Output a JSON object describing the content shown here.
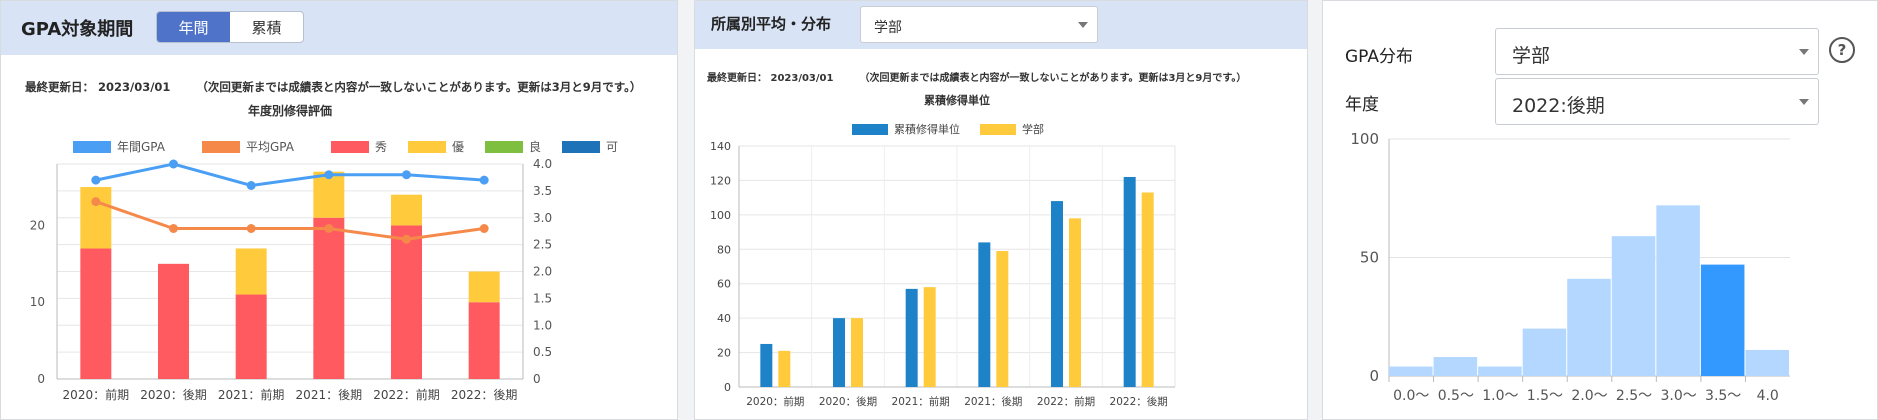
{
  "panel_gpa": {
    "title": "GPA対象期間",
    "toggle": [
      "年間",
      "累積"
    ],
    "updated_label": "最終更新日： 2023/03/01",
    "note": "（次回更新までは成績表と内容が一致しないことがあります。更新は3月と9月です。）"
  },
  "panel_dist": {
    "title": "所属別平均・分布",
    "select_value": "学部",
    "updated_label": "最終更新日： 2023/03/01",
    "note": "（次回更新までは成績表と内容が一致しないことがあります。更新は3月と9月です。）"
  },
  "panel_hist": {
    "gpa_label": "GPA分布",
    "gpa_select": "学部",
    "year_label": "年度",
    "year_select": "2022:後期",
    "help": "?"
  },
  "chart_data": [
    {
      "type": "bar",
      "title": "年度別修得評価",
      "categories": [
        "2020：前期",
        "2020：後期",
        "2021：前期",
        "2021：後期",
        "2022：前期",
        "2022：後期"
      ],
      "stacked": true,
      "series": [
        {
          "name": "秀",
          "color": "#ff5a5f",
          "values": [
            17,
            15,
            11,
            21,
            20,
            10
          ]
        },
        {
          "name": "優",
          "color": "#ffcb3d",
          "values": [
            8,
            0,
            6,
            6,
            4,
            4
          ]
        },
        {
          "name": "良",
          "color": "#7fbf3f",
          "values": [
            0,
            0,
            0,
            0,
            0,
            0
          ]
        },
        {
          "name": "可",
          "color": "#1e72b8",
          "values": [
            0,
            0,
            0,
            0,
            0,
            0
          ]
        }
      ],
      "line_series": [
        {
          "name": "年間GPA",
          "color": "#4a9ff5",
          "values": [
            3.7,
            4.0,
            3.6,
            3.8,
            3.8,
            3.7
          ]
        },
        {
          "name": "平均GPA",
          "color": "#f5894a",
          "values": [
            3.3,
            2.8,
            2.8,
            2.8,
            2.6,
            2.8
          ]
        }
      ],
      "legend": [
        "年間GPA",
        "平均GPA",
        "秀",
        "優",
        "良",
        "可"
      ],
      "legend_position": "top",
      "ylim": [
        0,
        28
      ],
      "yticks": [
        "0",
        "10",
        "20"
      ],
      "y2lim": [
        0,
        4.0
      ],
      "y2ticks": [
        "0",
        "0.5",
        "1.0",
        "1.5",
        "2.0",
        "2.5",
        "3.0",
        "3.5",
        "4.0"
      ]
    },
    {
      "type": "bar",
      "title": "累積修得単位",
      "categories": [
        "2020：前期",
        "2020：後期",
        "2021：前期",
        "2021：後期",
        "2022：前期",
        "2022：後期"
      ],
      "series": [
        {
          "name": "累積修得単位",
          "color": "#1e82c8",
          "values": [
            25,
            40,
            57,
            84,
            108,
            122
          ]
        },
        {
          "name": "学部",
          "color": "#ffcb3d",
          "values": [
            21,
            40,
            58,
            79,
            98,
            113
          ]
        }
      ],
      "legend_position": "top",
      "ylim": [
        0,
        140
      ],
      "yticks": [
        "0",
        "20",
        "40",
        "60",
        "80",
        "100",
        "120",
        "140"
      ]
    },
    {
      "type": "bar",
      "categories": [
        "0.0～",
        "0.5～",
        "1.0～",
        "1.5～",
        "2.0～",
        "2.5～",
        "3.0～",
        "3.5～",
        "4.0"
      ],
      "values": [
        4,
        8,
        4,
        20,
        41,
        59,
        72,
        47,
        11
      ],
      "highlight_index": 7,
      "colors": {
        "normal": "#b3d7ff",
        "highlight": "#3399ff"
      },
      "ylim": [
        0,
        100
      ],
      "yticks": [
        "0",
        "50",
        "100"
      ]
    }
  ]
}
